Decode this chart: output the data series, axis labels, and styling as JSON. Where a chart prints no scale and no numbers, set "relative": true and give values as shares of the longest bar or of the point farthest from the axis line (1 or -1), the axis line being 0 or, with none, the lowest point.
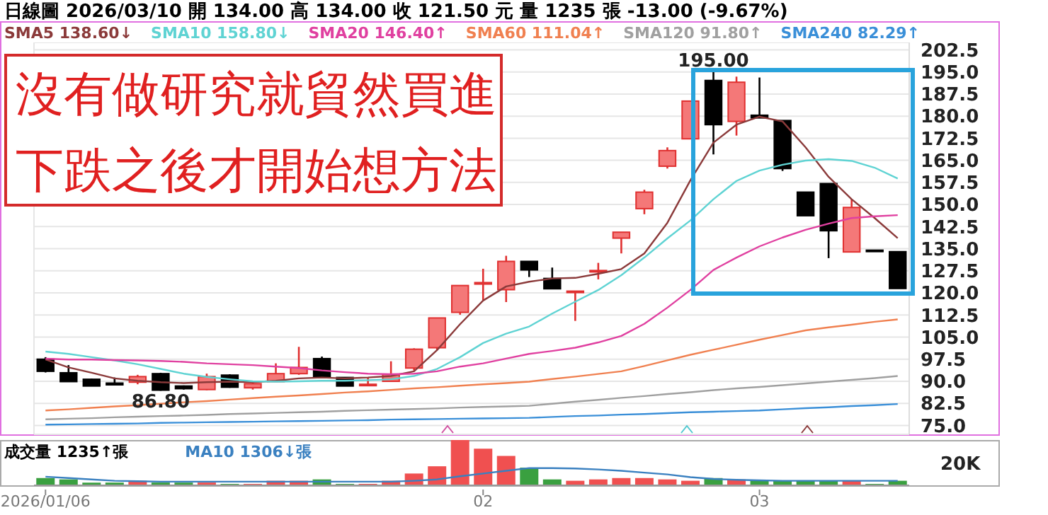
{
  "chart_data": [
    {
      "type": "candlestick",
      "title": "日線圖 2026/03/10 開 134.00 高 134.00 收 121.50 元 量 1235 張 -13.00 (-9.67%)",
      "categories": [
        "2026/01/06",
        null,
        null,
        null,
        null,
        null,
        null,
        null,
        null,
        null,
        null,
        null,
        null,
        null,
        null,
        null,
        null,
        null,
        null,
        "02",
        null,
        null,
        null,
        null,
        null,
        null,
        null,
        null,
        null,
        null,
        null,
        "03",
        null,
        null,
        null,
        null,
        null,
        null
      ],
      "ohlc": [
        [
          97.5,
          98.2,
          93.0,
          93.4
        ],
        [
          92.9,
          95.5,
          89.9,
          89.9
        ],
        [
          90.7,
          90.9,
          88.4,
          88.4
        ],
        [
          89.4,
          91.3,
          88.6,
          88.8
        ],
        [
          89.7,
          92.2,
          89.0,
          91.6
        ],
        [
          92.6,
          92.9,
          86.8,
          87.0
        ],
        [
          88.4,
          88.6,
          87.2,
          87.5
        ],
        [
          87.2,
          92.6,
          87.0,
          91.6
        ],
        [
          92.1,
          92.4,
          87.8,
          88.0
        ],
        [
          87.8,
          90.2,
          87.2,
          89.2
        ],
        [
          89.9,
          96.1,
          89.9,
          92.6
        ],
        [
          92.6,
          101.7,
          92.2,
          94.7
        ],
        [
          97.7,
          98.4,
          91.5,
          91.5
        ],
        [
          91.3,
          91.3,
          88.4,
          88.4
        ],
        [
          88.8,
          91.3,
          88.4,
          89.0
        ],
        [
          90.0,
          96.8,
          89.9,
          92.4
        ],
        [
          94.5,
          101.2,
          93.7,
          100.9
        ],
        [
          101.4,
          111.5,
          100.6,
          111.5
        ],
        [
          113.4,
          122.5,
          112.6,
          122.5
        ],
        [
          123.0,
          128.2,
          117.5,
          123.5
        ],
        [
          121.1,
          132.6,
          116.9,
          130.7
        ],
        [
          130.7,
          130.7,
          125.4,
          127.8
        ],
        [
          124.9,
          128.6,
          121.4,
          121.4
        ],
        [
          120.2,
          120.6,
          110.5,
          120.6
        ],
        [
          127.2,
          130.2,
          124.6,
          127.6
        ],
        [
          138.6,
          140.6,
          133.4,
          140.6
        ],
        [
          148.6,
          155.0,
          146.7,
          154.2
        ],
        [
          163.0,
          169.4,
          162.2,
          168.3
        ],
        [
          172.3,
          185.1,
          172.3,
          185.1
        ],
        [
          192.1,
          195.0,
          167.0,
          177.1
        ],
        [
          178.2,
          193.4,
          173.4,
          191.5
        ],
        [
          180.3,
          193.1,
          179.4,
          179.4
        ],
        [
          178.5,
          178.5,
          161.4,
          162.2
        ],
        [
          154.2,
          154.2,
          146.2,
          146.2
        ],
        [
          157.1,
          157.1,
          131.8,
          141.1
        ],
        [
          133.9,
          151.8,
          133.9,
          149.0
        ],
        [
          134.5,
          134.5,
          134.5,
          134.5
        ],
        [
          134.0,
          134.0,
          121.5,
          121.5
        ]
      ],
      "colors": [
        "#000000",
        "#000000",
        "#000000",
        "#000000",
        "#f47878",
        "#000000",
        "#000000",
        "#f47878",
        "#000000",
        "#f47878",
        "#f47878",
        "#f47878",
        "#000000",
        "#000000",
        "#f47878",
        "#f47878",
        "#f47878",
        "#f47878",
        "#f47878",
        "#f47878",
        "#f47878",
        "#000000",
        "#000000",
        "#f47878",
        "#f47878",
        "#f47878",
        "#f47878",
        "#f47878",
        "#f47878",
        "#000000",
        "#f47878",
        "#000000",
        "#000000",
        "#000000",
        "#000000",
        "#f47878",
        "#000000",
        "#000000"
      ],
      "series": [
        {
          "name": "SMA5 138.60↓",
          "type": "line",
          "color": "#8b3a3a",
          "values": [
            97.4,
            94.7,
            92.9,
            91.0,
            90.2,
            89.7,
            89.4,
            89.7,
            89.9,
            89.7,
            90.2,
            91.0,
            91.3,
            91.0,
            91.3,
            91.8,
            93.4,
            100.6,
            109.4,
            117.4,
            122.2,
            123.8,
            124.9,
            125.1,
            126.5,
            128.1,
            133.4,
            143.8,
            158.2,
            171.0,
            177.1,
            179.8,
            178.2,
            169.4,
            159.4,
            151.8,
            145.4,
            138.6
          ]
        },
        {
          "name": "SMA10 158.80↓",
          "type": "line",
          "color": "#5fd3d3",
          "values": [
            100.1,
            99.3,
            98.2,
            97.1,
            95.8,
            94.2,
            92.6,
            91.5,
            90.7,
            90.0,
            89.9,
            90.0,
            90.2,
            90.2,
            90.4,
            90.7,
            91.8,
            94.2,
            98.2,
            103.0,
            106.2,
            108.6,
            113.0,
            117.0,
            121.0,
            126.0,
            132.0,
            138.5,
            144.6,
            151.8,
            158.0,
            161.5,
            163.5,
            164.9,
            165.4,
            164.8,
            162.5,
            158.8
          ]
        },
        {
          "name": "SMA20 146.40↑",
          "type": "line",
          "color": "#e040a0",
          "values": [
            97.7,
            97.4,
            97.4,
            97.2,
            97.1,
            96.9,
            96.6,
            96.1,
            95.8,
            95.5,
            95.0,
            94.5,
            93.7,
            93.1,
            92.6,
            92.4,
            92.6,
            93.4,
            95.0,
            96.1,
            97.7,
            99.3,
            100.3,
            101.4,
            103.2,
            105.4,
            109.5,
            115.0,
            121.0,
            127.8,
            132.0,
            135.8,
            138.8,
            141.4,
            143.5,
            145.4,
            146.0,
            146.4
          ]
        },
        {
          "name": "SMA60 111.04↑",
          "type": "line",
          "color": "#f08050",
          "values": [
            80.1,
            80.5,
            81.0,
            81.5,
            81.9,
            82.4,
            82.9,
            83.3,
            83.8,
            84.3,
            84.8,
            85.2,
            85.7,
            86.2,
            86.6,
            87.1,
            87.6,
            88.0,
            88.5,
            89.0,
            89.4,
            89.9,
            90.8,
            91.6,
            92.5,
            93.4,
            95.2,
            97.1,
            99.0,
            100.7,
            102.4,
            104.1,
            105.7,
            107.3,
            108.3,
            109.2,
            110.2,
            111.0
          ]
        },
        {
          "name": "SMA120 91.80↑",
          "type": "line",
          "color": "#a0a0a0",
          "values": [
            77.1,
            77.3,
            77.5,
            77.8,
            78.0,
            78.2,
            78.4,
            78.6,
            78.9,
            79.1,
            79.3,
            79.5,
            79.7,
            80.0,
            80.2,
            80.4,
            80.6,
            80.8,
            81.1,
            81.3,
            81.5,
            81.7,
            82.4,
            83.1,
            83.7,
            84.4,
            85.0,
            85.7,
            86.3,
            87.0,
            87.6,
            88.1,
            88.7,
            89.3,
            89.9,
            90.5,
            91.1,
            91.8
          ]
        },
        {
          "name": "SMA240 82.29↑",
          "type": "line",
          "color": "#3a8fd8",
          "values": [
            75.3,
            75.4,
            75.5,
            75.6,
            75.7,
            75.9,
            76.0,
            76.1,
            76.2,
            76.3,
            76.4,
            76.5,
            76.6,
            76.7,
            76.8,
            77.0,
            77.1,
            77.2,
            77.3,
            77.4,
            77.5,
            77.6,
            77.9,
            78.2,
            78.4,
            78.7,
            78.9,
            79.2,
            79.5,
            79.7,
            79.9,
            80.1,
            80.5,
            80.9,
            81.2,
            81.6,
            81.9,
            82.3
          ]
        }
      ],
      "ylim": [
        72,
        205
      ],
      "yticks": [
        {
          "value": 75,
          "label": "75.0"
        },
        82.5,
        {
          "value": 90,
          "label": "90.0"
        },
        97.5,
        {
          "value": 105,
          "label": "105.0"
        },
        112.5,
        {
          "value": 120,
          "label": "120.0"
        },
        127.5,
        {
          "value": 135,
          "label": "135.0"
        },
        142.5,
        {
          "value": 150,
          "label": "150.0"
        },
        157.5,
        {
          "value": 165,
          "label": "165.0"
        },
        172.5,
        {
          "value": 180,
          "label": "180.0"
        },
        187.5,
        {
          "value": 195,
          "label": "195.0"
        },
        202.5
      ],
      "grid": true,
      "legend": "top",
      "tick_labels": "y",
      "annotations": [
        "沒有做研究就貿然買進",
        "下跌之後才開始想方法",
        {
          "text": "195.00",
          "y": 195
        },
        {
          "text": "86.80",
          "y": 86.8
        }
      ]
    },
    {
      "type": "bar",
      "relative": true,
      "tick_labels": "x",
      "legend": "top left",
      "categories": [
        "2026/01/06",
        null,
        null,
        null,
        null,
        null,
        null,
        null,
        null,
        null,
        null,
        null,
        null,
        null,
        null,
        null,
        null,
        null,
        null,
        "02",
        null,
        null,
        null,
        null,
        null,
        null,
        null,
        null,
        null,
        null,
        null,
        "03",
        null,
        null,
        null,
        null,
        null,
        null
      ],
      "series": [
        {
          "name": "成交量 1235↑張",
          "type": "bar",
          "colors": [
            "#3aa040",
            "#3aa040",
            "#3aa040",
            "#3aa040",
            "#f05050",
            "#3aa040",
            "#3aa040",
            "#f05050",
            "#3aa040",
            "#f05050",
            "#f05050",
            "#f05050",
            "#3aa040",
            "#3aa040",
            "#f05050",
            "#f05050",
            "#f05050",
            "#f05050",
            "#f05050",
            "#f05050",
            "#f05050",
            "#3aa040",
            "#3aa040",
            "#f05050",
            "#f05050",
            "#f05050",
            "#f05050",
            "#f05050",
            "#f05050",
            "#3aa040",
            "#f05050",
            "#3aa040",
            "#3aa040",
            "#3aa040",
            "#3aa040",
            "#f05050",
            "#3aa040",
            "#3aa040"
          ],
          "values": [
            0.16,
            0.13,
            0.06,
            0.06,
            0.1,
            0.06,
            0.06,
            0.06,
            0.03,
            0.03,
            0.1,
            0.1,
            0.13,
            0.03,
            0.03,
            0.1,
            0.26,
            0.42,
            1,
            0.81,
            0.65,
            0.39,
            0.13,
            0.1,
            0.13,
            0.16,
            0.16,
            0.13,
            0.1,
            0.16,
            0.13,
            0.1,
            0.1,
            0.1,
            0.1,
            0.1,
            0.03,
            0.1
          ]
        },
        {
          "name": "MA10 1306↓張",
          "type": "line",
          "color": "#3a80c0",
          "values": [
            0.19,
            0.16,
            0.13,
            0.1,
            0.09,
            0.08,
            0.08,
            0.08,
            0.08,
            0.08,
            0.08,
            0.08,
            0.08,
            0.08,
            0.08,
            0.08,
            0.1,
            0.13,
            0.2,
            0.26,
            0.32,
            0.38,
            0.38,
            0.37,
            0.35,
            0.32,
            0.28,
            0.24,
            0.18,
            0.14,
            0.12,
            0.11,
            0.1,
            0.1,
            0.1,
            0.1,
            0.1,
            0.1
          ]
        }
      ],
      "annotations": [
        "20K"
      ]
    }
  ]
}
